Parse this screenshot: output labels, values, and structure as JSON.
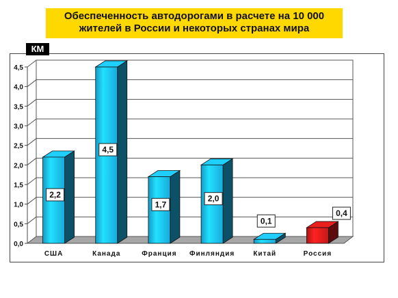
{
  "title": {
    "line1": "Обеспеченность автодорогами в расчете на 10 000",
    "line2": "жителей в России и некоторых странах мира"
  },
  "unit_label": "КМ",
  "colors": {
    "title_bg": "#ffd800",
    "bar_default": "#1ab4e8",
    "bar_highlight": "#cc1a1a"
  },
  "chart_data": {
    "type": "bar",
    "title": "Обеспеченность автодорогами в расчете на 10 000 жителей в России и некоторых странах мира",
    "ylabel": "КМ",
    "ylim": [
      0,
      4.5
    ],
    "yticks": [
      "0,0",
      "0,5",
      "1,0",
      "1,5",
      "2,0",
      "2,5",
      "3,0",
      "3,5",
      "4,0",
      "4,5"
    ],
    "categories": [
      "США",
      "Канада",
      "Франция",
      "Финляндия",
      "Китай",
      "Россия"
    ],
    "values": [
      2.2,
      4.5,
      1.7,
      2.0,
      0.1,
      0.4
    ],
    "value_labels": [
      "2,2",
      "4,5",
      "1,7",
      "2,0",
      "0,1",
      "0,4"
    ],
    "highlight": "Россия",
    "grid": true,
    "style": "3d"
  }
}
